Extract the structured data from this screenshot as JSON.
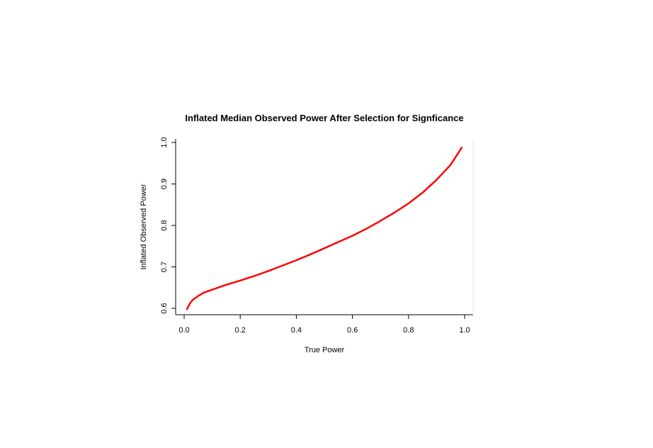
{
  "chart_data": {
    "type": "line",
    "title": "Inflated Median Observed Power After Selection for Signficance",
    "xlabel": "True Power",
    "ylabel": "Inflated Observed Power",
    "xlim": [
      0.0,
      1.0
    ],
    "ylim": [
      0.6,
      1.0
    ],
    "xticks": [
      "0.0",
      "0.2",
      "0.4",
      "0.6",
      "0.8",
      "1.0"
    ],
    "yticks": [
      "0.6",
      "0.7",
      "0.8",
      "0.9",
      "1.0"
    ],
    "grid": false,
    "series": [
      {
        "color": "#ff0000",
        "x": [
          0.01,
          0.02,
          0.03,
          0.05,
          0.07,
          0.1,
          0.15,
          0.2,
          0.25,
          0.3,
          0.35,
          0.4,
          0.45,
          0.5,
          0.55,
          0.6,
          0.65,
          0.7,
          0.75,
          0.8,
          0.85,
          0.9,
          0.95,
          0.99
        ],
        "y": [
          0.598,
          0.611,
          0.62,
          0.63,
          0.638,
          0.645,
          0.657,
          0.667,
          0.678,
          0.69,
          0.703,
          0.716,
          0.73,
          0.745,
          0.76,
          0.775,
          0.792,
          0.811,
          0.831,
          0.853,
          0.879,
          0.91,
          0.946,
          0.988
        ]
      }
    ]
  }
}
